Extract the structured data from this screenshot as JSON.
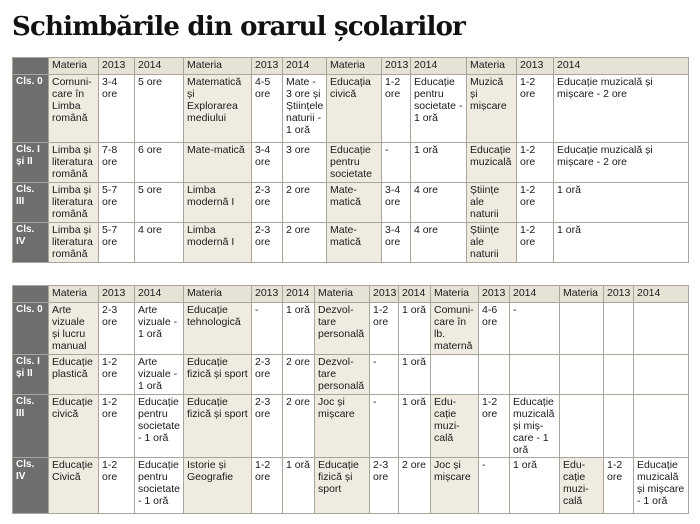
{
  "title": "Schimbările din orarul școlarilor",
  "table1": {
    "header": [
      "",
      "Materia",
      "2013",
      "2014",
      "Materia",
      "2013",
      "2014",
      "Materia",
      "2013",
      "2014",
      "Materia",
      "2013",
      "2014"
    ],
    "rows": [
      [
        "Cls. 0",
        "Comuni-care în Limba română",
        "3-4 ore",
        "5 ore",
        "Matematică și Explorarea mediului",
        "4-5 ore",
        "Mate - 3 ore și Științele naturii - 1 oră",
        "Educația civică",
        "1-2 ore",
        "Educație pentru societate - 1 oră",
        "Muzică și mișcare",
        "1-2 ore",
        "Educație muzicală și mișcare - 2 ore"
      ],
      [
        "Cls. I și II",
        "Limba și literatura română",
        "7-8 ore",
        "6 ore",
        "Mate-matică",
        "3-4 ore",
        "3 ore",
        "Educație pentru societate",
        "-",
        "1 oră",
        "Educație muzicală",
        "1-2 ore",
        "Educație muzicală și mișcare - 2 ore"
      ],
      [
        "Cls. III",
        "Limba și literatura română",
        "5-7 ore",
        "5 ore",
        "Limba modernă I",
        "2-3 ore",
        "2 ore",
        "Mate-matică",
        "3-4 ore",
        "4 ore",
        "Științe ale naturii",
        "1-2 ore",
        "1 oră"
      ],
      [
        "Cls. IV",
        "Limba și literatura română",
        "5-7 ore",
        "4 ore",
        "Limba modernă I",
        "2-3 ore",
        "2 ore",
        "Mate-matică",
        "3-4 ore",
        "4 ore",
        "Științe ale naturii",
        "1-2 ore",
        "1 oră"
      ]
    ]
  },
  "table2": {
    "header": [
      "",
      "Materia",
      "2013",
      "2014",
      "Materia",
      "2013",
      "2014",
      "Materia",
      "2013",
      "2014",
      "Materia",
      "2013",
      "2014",
      "Materia",
      "2013",
      "2014"
    ],
    "rows": [
      [
        "Cls. 0",
        "Arte vizuale și lucru manual",
        "2-3 ore",
        "Arte vizuale - 1 oră",
        "Educație tehnologică",
        "-",
        "1 oră",
        "Dezvol-tare personală",
        "1-2 ore",
        "1 oră",
        "Comuni-care în lb. maternă",
        "4-6 ore",
        "-",
        "",
        "",
        ""
      ],
      [
        "Cls. I și II",
        "Educație plastică",
        "1-2 ore",
        "Arte vizuale - 1 oră",
        "Educație fizică și sport",
        "2-3 ore",
        "2 ore",
        "Dezvol-tare personală",
        "-",
        "1 oră",
        "",
        "",
        "",
        "",
        "",
        ""
      ],
      [
        "Cls. III",
        "Educație civică",
        "1-2 ore",
        "Educație pentru societate - 1 oră",
        "Educație fizică și sport",
        "2-3 ore",
        "2 ore",
        "Joc și mișcare",
        "-",
        "1 oră",
        "Edu-cație muzi-cală",
        "1-2 ore",
        "Educație muzicală și miș-care - 1 oră",
        "",
        "",
        ""
      ],
      [
        "Cls. IV",
        "Educație Civică",
        "1-2 ore",
        "Educație pentru societate - 1 oră",
        "Istorie și Geografie",
        "1-2 ore",
        "1 oră",
        "Educație fizică și sport",
        "2-3 ore",
        "2 ore",
        "Joc și mișcare",
        "-",
        "1 oră",
        "Edu-cație muzi-cală",
        "1-2 ore",
        "Educație muzicală și mișcare - 1 oră"
      ]
    ]
  }
}
